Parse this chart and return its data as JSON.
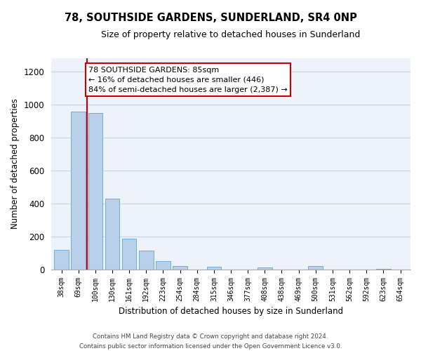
{
  "title": "78, SOUTHSIDE GARDENS, SUNDERLAND, SR4 0NP",
  "subtitle": "Size of property relative to detached houses in Sunderland",
  "xlabel": "Distribution of detached houses by size in Sunderland",
  "ylabel": "Number of detached properties",
  "categories": [
    "38sqm",
    "69sqm",
    "100sqm",
    "130sqm",
    "161sqm",
    "192sqm",
    "223sqm",
    "254sqm",
    "284sqm",
    "315sqm",
    "346sqm",
    "377sqm",
    "408sqm",
    "438sqm",
    "469sqm",
    "500sqm",
    "531sqm",
    "562sqm",
    "592sqm",
    "623sqm",
    "654sqm"
  ],
  "values": [
    120,
    955,
    950,
    430,
    185,
    115,
    48,
    22,
    0,
    15,
    0,
    0,
    12,
    0,
    0,
    18,
    0,
    0,
    0,
    5,
    0
  ],
  "bar_color": "#b8d0ea",
  "bar_edge_color": "#6baed6",
  "background_color": "#edf2fb",
  "grid_color": "#c8d4e8",
  "vline_color": "#cc0000",
  "annotation_text": "78 SOUTHSIDE GARDENS: 85sqm\n← 16% of detached houses are smaller (446)\n84% of semi-detached houses are larger (2,387) →",
  "annotation_box_color": "#ffffff",
  "annotation_box_edge": "#cc0000",
  "ylim": [
    0,
    1280
  ],
  "yticks": [
    0,
    200,
    400,
    600,
    800,
    1000,
    1200
  ],
  "footer_line1": "Contains HM Land Registry data © Crown copyright and database right 2024.",
  "footer_line2": "Contains public sector information licensed under the Open Government Licence v3.0."
}
